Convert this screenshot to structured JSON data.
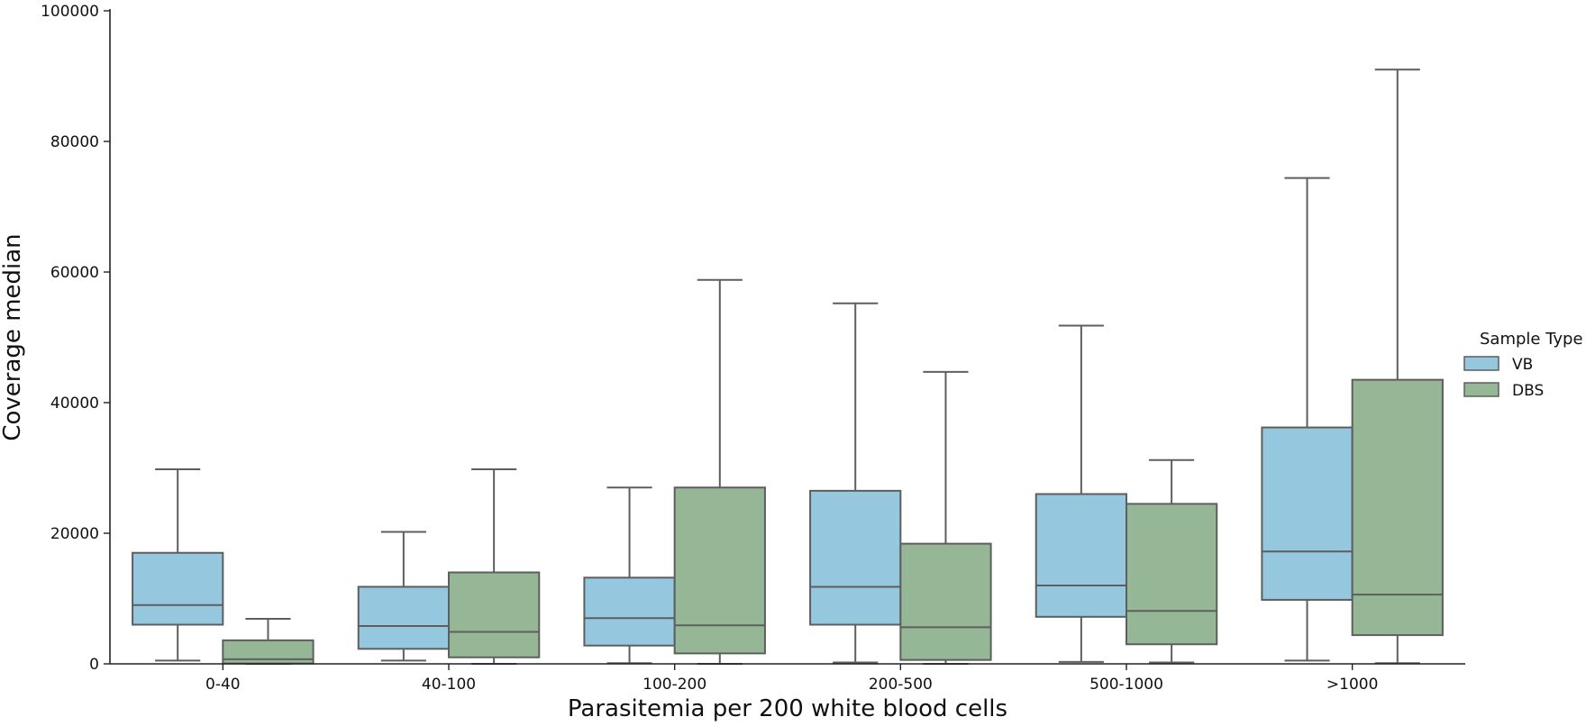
{
  "chart_data": {
    "type": "box",
    "title": "",
    "xlabel": "Parasitemia per 200 white blood cells",
    "ylabel": "Coverage median",
    "ylim": [
      0,
      100000
    ],
    "yticks": [
      0,
      20000,
      40000,
      60000,
      80000,
      100000
    ],
    "ytick_labels": [
      "0",
      "20000",
      "40000",
      "60000",
      "80000",
      "100000"
    ],
    "categories": [
      "0-40",
      "40-100",
      "100-200",
      "200-500",
      "500-1000",
      ">1000"
    ],
    "legend": {
      "title": "Sample Type",
      "placement": "right"
    },
    "grid": false,
    "series": [
      {
        "name": "VB",
        "color": "#95c8de",
        "boxes": [
          {
            "whisker_low": 500,
            "q1": 6000,
            "median": 9000,
            "q3": 17000,
            "whisker_high": 29800
          },
          {
            "whisker_low": 500,
            "q1": 2300,
            "median": 5800,
            "q3": 11800,
            "whisker_high": 20200
          },
          {
            "whisker_low": 100,
            "q1": 2800,
            "median": 7000,
            "q3": 13200,
            "whisker_high": 27000
          },
          {
            "whisker_low": 200,
            "q1": 6000,
            "median": 11800,
            "q3": 26500,
            "whisker_high": 55200
          },
          {
            "whisker_low": 300,
            "q1": 7200,
            "median": 12000,
            "q3": 26000,
            "whisker_high": 51800
          },
          {
            "whisker_low": 500,
            "q1": 9800,
            "median": 17200,
            "q3": 36200,
            "whisker_high": 74400
          }
        ]
      },
      {
        "name": "DBS",
        "color": "#95b795",
        "boxes": [
          {
            "whisker_low": 0,
            "q1": 50,
            "median": 700,
            "q3": 3600,
            "whisker_high": 6900
          },
          {
            "whisker_low": 0,
            "q1": 1000,
            "median": 4900,
            "q3": 14000,
            "whisker_high": 29800
          },
          {
            "whisker_low": 0,
            "q1": 1600,
            "median": 5900,
            "q3": 27000,
            "whisker_high": 58800
          },
          {
            "whisker_low": 0,
            "q1": 600,
            "median": 5600,
            "q3": 18400,
            "whisker_high": 44700
          },
          {
            "whisker_low": 200,
            "q1": 3000,
            "median": 8100,
            "q3": 24500,
            "whisker_high": 31200
          },
          {
            "whisker_low": 100,
            "q1": 4400,
            "median": 10600,
            "q3": 43500,
            "whisker_high": 91000
          }
        ]
      }
    ]
  }
}
